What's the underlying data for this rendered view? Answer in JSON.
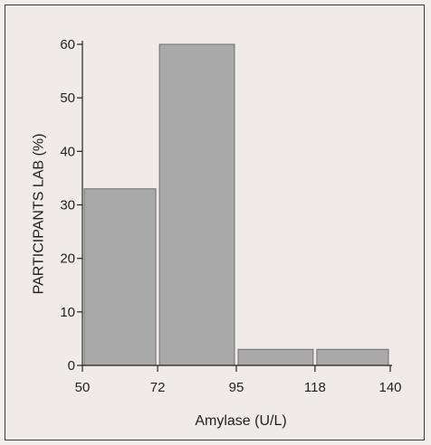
{
  "chart_data": {
    "type": "bar",
    "histogram": true,
    "bins": [
      {
        "from": 50,
        "to": 72,
        "value": 33
      },
      {
        "from": 72,
        "to": 95,
        "value": 60
      },
      {
        "from": 95,
        "to": 118,
        "value": 3
      },
      {
        "from": 118,
        "to": 140,
        "value": 3
      }
    ],
    "x_ticks": [
      50,
      72,
      95,
      118,
      140
    ],
    "y_ticks": [
      0,
      10,
      20,
      30,
      40,
      50,
      60
    ],
    "xlabel": "Amylase (U/L)",
    "ylabel": "PARTICIPANTS LAB (%)",
    "xlim": [
      50,
      140
    ],
    "ylim": [
      0,
      60
    ],
    "grid": false,
    "bar_color": "#a9a9a9",
    "bar_edge_color": "#6e6e6e",
    "accent_color": "#c97888"
  }
}
